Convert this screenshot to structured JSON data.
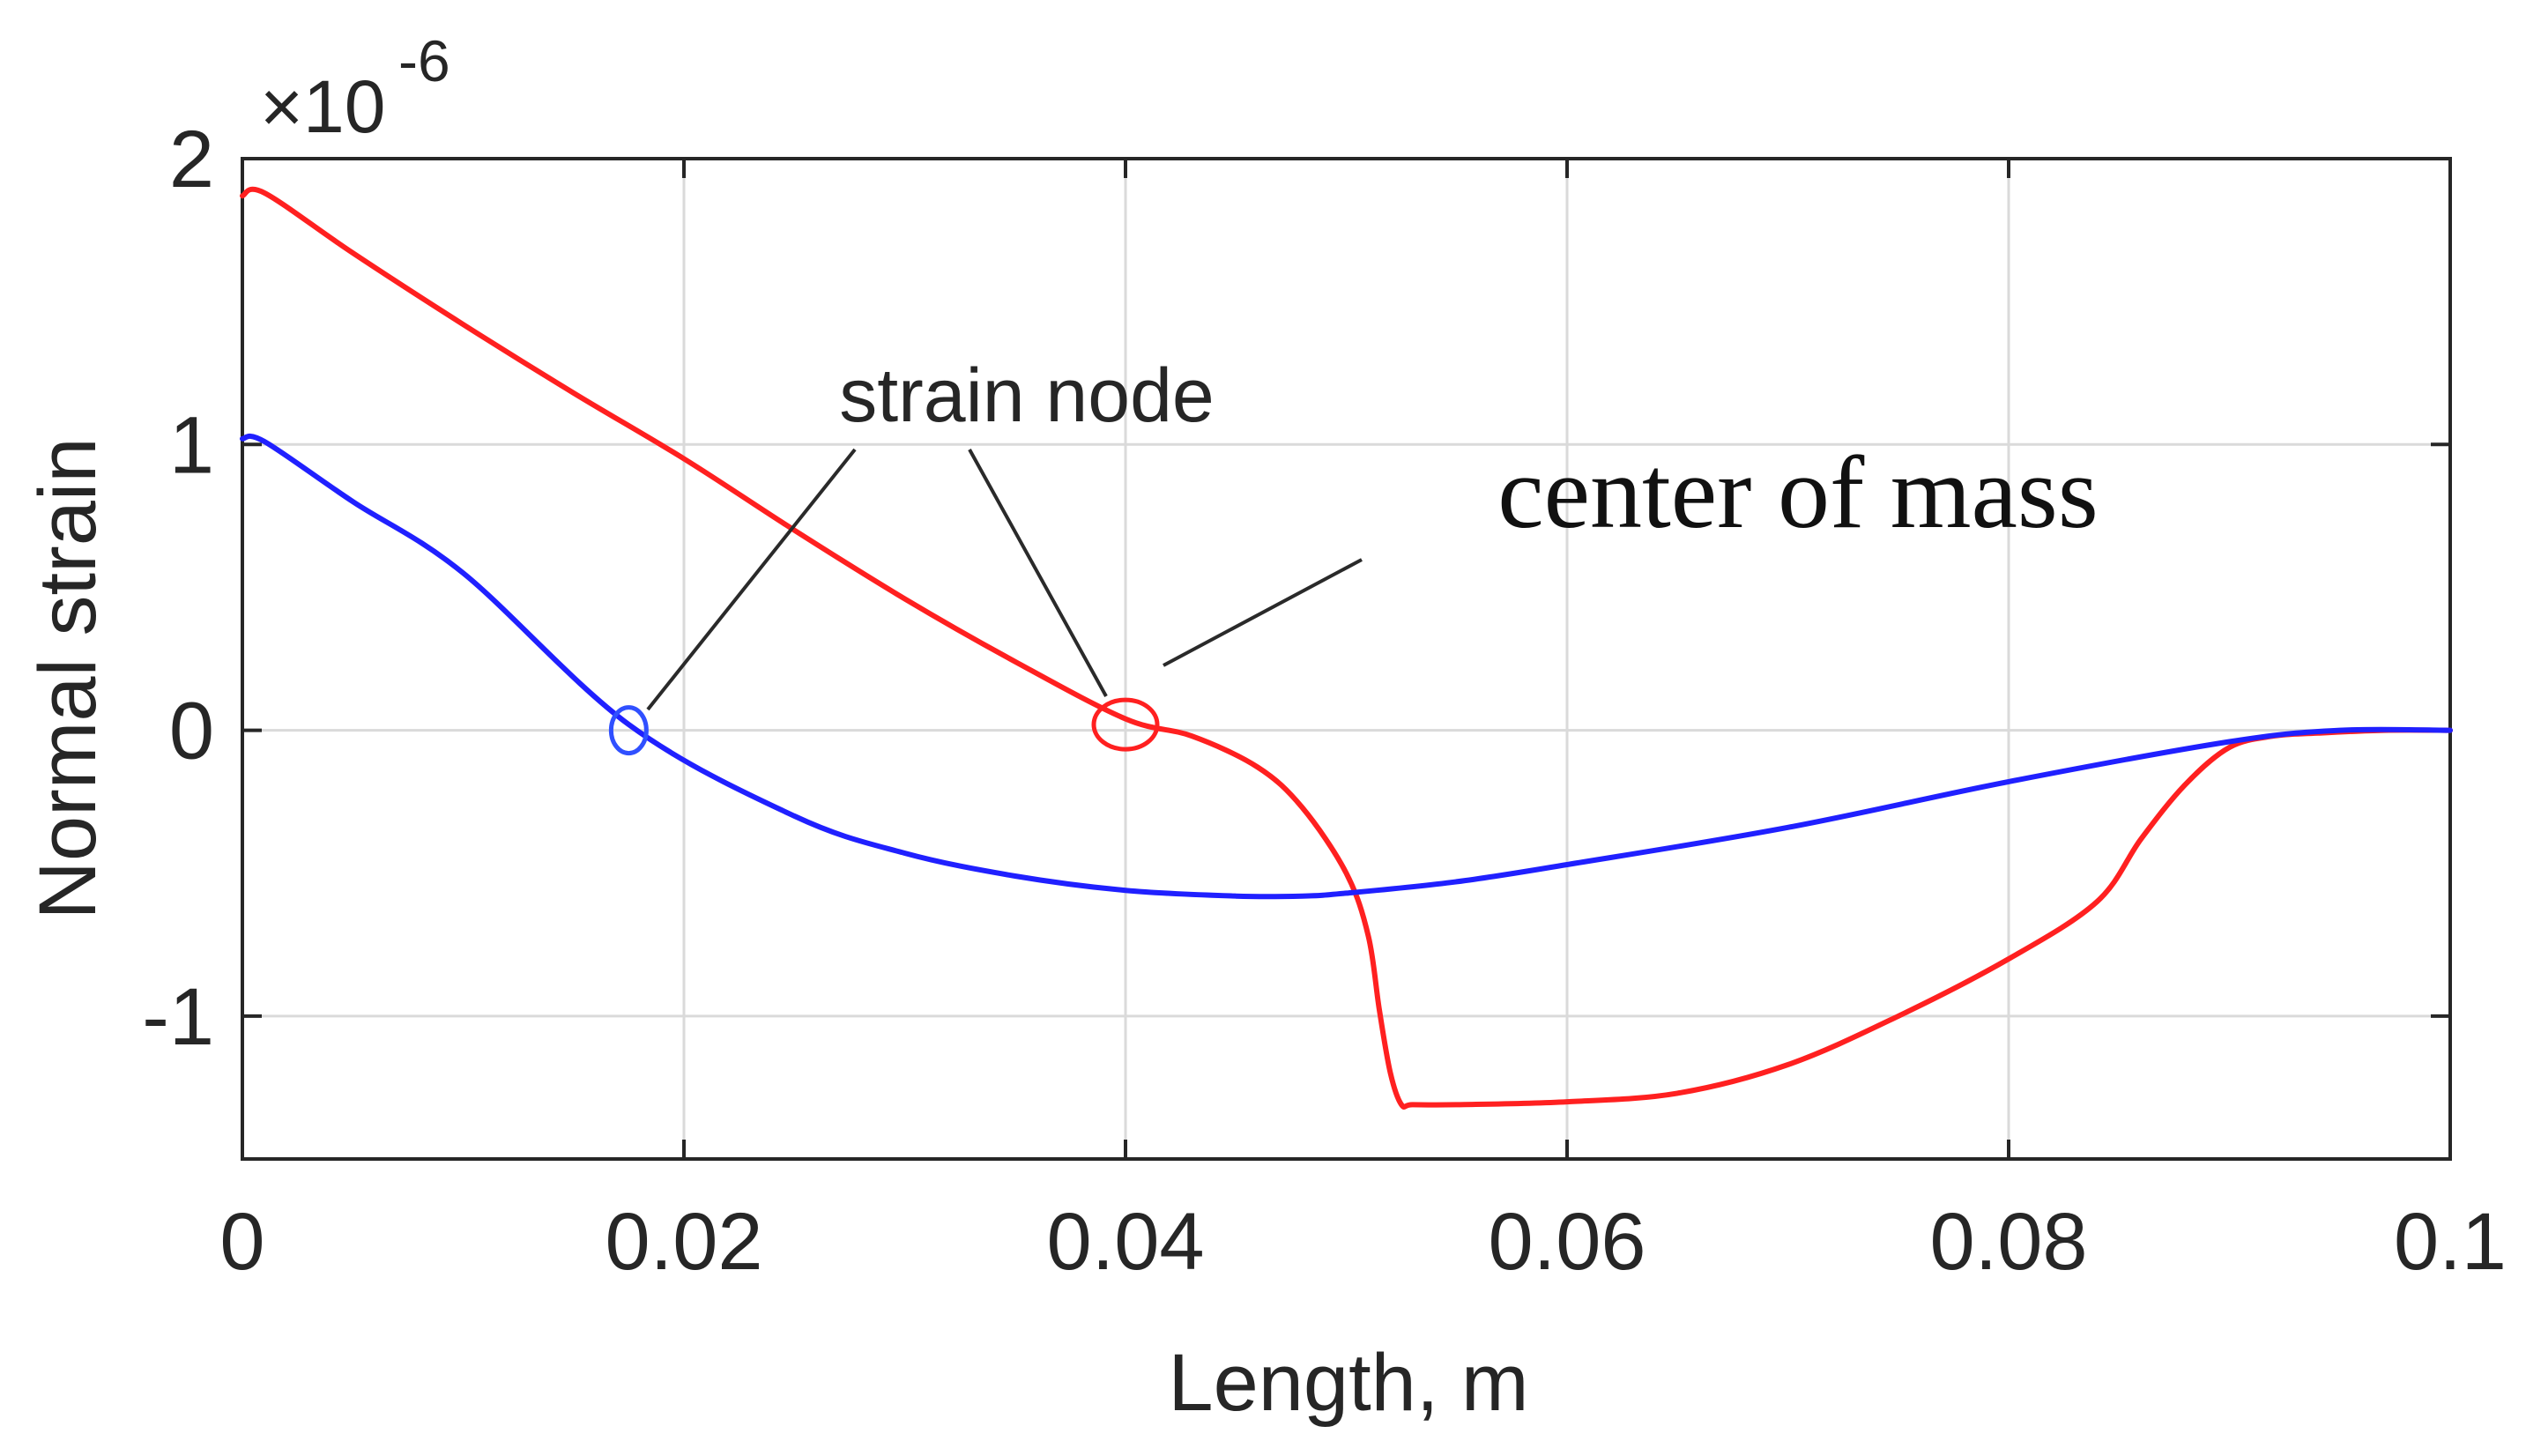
{
  "chart_data": {
    "type": "line",
    "xlabel": "Length, m",
    "ylabel": "Normal strain",
    "y_multiplier": {
      "base": "×10",
      "exponent": "-6"
    },
    "xlim": [
      0,
      0.1
    ],
    "ylim": [
      -1.5,
      2
    ],
    "x_ticks": [
      0,
      0.02,
      0.04,
      0.06,
      0.08,
      0.1
    ],
    "x_tick_labels": [
      "0",
      "0.02",
      "0.04",
      "0.06",
      "0.08",
      "0.1"
    ],
    "y_ticks": [
      -1,
      0,
      1,
      2
    ],
    "y_tick_labels": [
      "-1",
      "0",
      "1",
      "2"
    ],
    "grid": true,
    "series": [
      {
        "color": "#ff2020",
        "x": [
          0,
          0.001,
          0.005,
          0.01,
          0.015,
          0.02,
          0.025,
          0.03,
          0.035,
          0.04,
          0.043,
          0.046,
          0.048,
          0.05,
          0.051,
          0.0515,
          0.052,
          0.0525,
          0.053,
          0.055,
          0.06,
          0.065,
          0.07,
          0.075,
          0.08,
          0.084,
          0.086,
          0.088,
          0.09,
          0.092,
          0.094,
          0.097,
          0.1
        ],
        "y": [
          1.87,
          1.88,
          1.67,
          1.42,
          1.18,
          0.95,
          0.7,
          0.46,
          0.24,
          0.04,
          -0.02,
          -0.13,
          -0.27,
          -0.5,
          -0.72,
          -0.98,
          -1.2,
          -1.31,
          -1.31,
          -1.31,
          -1.3,
          -1.27,
          -1.17,
          -1.0,
          -0.8,
          -0.6,
          -0.38,
          -0.19,
          -0.06,
          -0.02,
          -0.01,
          0,
          0
        ]
      },
      {
        "color": "#2020ff",
        "x": [
          0,
          0.001,
          0.005,
          0.01,
          0.0175,
          0.025,
          0.03,
          0.035,
          0.04,
          0.045,
          0.048,
          0.05,
          0.055,
          0.06,
          0.07,
          0.08,
          0.09,
          0.095,
          0.1
        ],
        "y": [
          1.02,
          1.01,
          0.8,
          0.55,
          0.02,
          -0.3,
          -0.43,
          -0.51,
          -0.56,
          -0.58,
          -0.58,
          -0.57,
          -0.53,
          -0.47,
          -0.34,
          -0.18,
          -0.04,
          0,
          0
        ]
      }
    ],
    "markers": [
      {
        "x": 0.0175,
        "y": 0,
        "color": "#3050ff"
      },
      {
        "x": 0.04,
        "y": 0.02,
        "color": "#ff2020"
      }
    ],
    "annotations": {
      "strain_node": "strain node",
      "center_of_mass": "center of mass"
    }
  }
}
